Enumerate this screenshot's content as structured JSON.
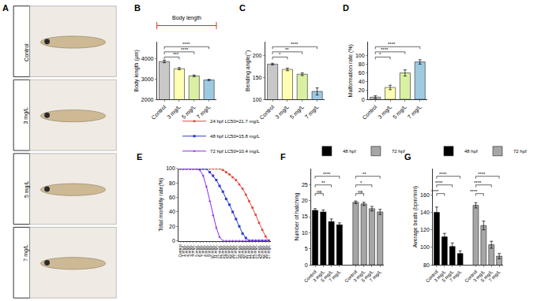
{
  "panel_A": {
    "label": "A",
    "groups": [
      "Control",
      "3 mg/L",
      "5 mg/L",
      "7 mg/L"
    ]
  },
  "chart_data": [
    {
      "label": "B",
      "type": "bar",
      "subtitle": "Body length",
      "categories": [
        "Control",
        "3 mg/L",
        "5 mg/L",
        "7 mg/L"
      ],
      "values": [
        3850,
        3500,
        3150,
        2950
      ],
      "errors": [
        60,
        50,
        40,
        30
      ],
      "colors": [
        "#c8c8c8",
        "#ffffb3",
        "#d9f0a3",
        "#9ecae1"
      ],
      "ylabel": "Body length (μm)",
      "ylim": [
        2000,
        4800
      ],
      "yticks": [
        2000,
        3000,
        4000
      ],
      "grid": false,
      "annotations": [
        {
          "from": "Control",
          "to": "3 mg/L",
          "text": "***"
        },
        {
          "from": "Control",
          "to": "5 mg/L",
          "text": "****"
        },
        {
          "from": "Control",
          "to": "7 mg/L",
          "text": "****"
        }
      ]
    },
    {
      "label": "C",
      "type": "bar",
      "categories": [
        "Control",
        "3 mg/L",
        "5 mg/L",
        "7 mg/L"
      ],
      "values": [
        180,
        168,
        157,
        118
      ],
      "errors": [
        2,
        3,
        3,
        8
      ],
      "colors": [
        "#c8c8c8",
        "#ffffb3",
        "#d9f0a3",
        "#9ecae1"
      ],
      "ylabel": "Bending angle(°)",
      "ylim": [
        100,
        230
      ],
      "yticks": [
        100,
        150,
        200
      ],
      "grid": false,
      "annotations": [
        {
          "from": "Control",
          "to": "3 mg/L",
          "text": "*"
        },
        {
          "from": "Control",
          "to": "5 mg/L",
          "text": "**"
        },
        {
          "from": "Control",
          "to": "7 mg/L",
          "text": "****"
        }
      ]
    },
    {
      "label": "D",
      "type": "bar",
      "categories": [
        "Control",
        "3 mg/L",
        "5 mg/L",
        "7 mg/L"
      ],
      "values": [
        5,
        27,
        60,
        85
      ],
      "errors": [
        3,
        5,
        7,
        5
      ],
      "colors": [
        "#c8c8c8",
        "#ffffb3",
        "#d9f0a3",
        "#9ecae1"
      ],
      "ylabel": "Malformation rate (%)",
      "ylim": [
        0,
        130
      ],
      "yticks": [
        0,
        20,
        40,
        60,
        80,
        100
      ],
      "grid": false,
      "annotations": [
        {
          "from": "Control",
          "to": "3 mg/L",
          "text": "*"
        },
        {
          "from": "Control",
          "to": "5 mg/L",
          "text": "****"
        },
        {
          "from": "Control",
          "to": "7 mg/L",
          "text": "****"
        }
      ]
    },
    {
      "label": "E",
      "type": "line",
      "categories": [
        "Control",
        "1 mg/L",
        "2 mg/L",
        "3 mg/L",
        "4 mg/L",
        "5 mg/L",
        "6 mg/L",
        "7 mg/L",
        "8 mg/L",
        "9 mg/L",
        "10 mg/L",
        "11 mg/L",
        "12 mg/L",
        "13 mg/L",
        "14 mg/L",
        "15 mg/L",
        "16 mg/L",
        "17 mg/L",
        "18 mg/L",
        "19 mg/L",
        "20 mg/L",
        "21 mg/L",
        "22 mg/L",
        "23 mg/L",
        "24 mg/L",
        "25 mg/L",
        "26 mg/L",
        "27 mg/L"
      ],
      "series": [
        {
          "name": "24 hpf LC50=21.7 mg/L",
          "color": "#e8443a",
          "marker": "circle",
          "values": [
            100,
            100,
            100,
            100,
            100,
            100,
            100,
            100,
            100,
            100,
            100,
            100,
            100,
            98,
            95,
            92,
            88,
            84,
            78,
            72,
            64,
            55,
            46,
            36,
            25,
            15,
            6,
            0
          ]
        },
        {
          "name": "48 hpf LC50=15.8 mg/L",
          "color": "#2b3bd1",
          "marker": "square",
          "values": [
            100,
            100,
            100,
            100,
            100,
            100,
            100,
            100,
            100,
            95,
            90,
            84,
            76,
            68,
            58,
            50,
            40,
            30,
            20,
            10,
            4,
            0,
            0,
            0,
            0,
            0,
            0,
            0
          ]
        },
        {
          "name": "72 hpf LC50=10.4 mg/L",
          "color": "#8a2be2",
          "marker": "triangle-up",
          "values": [
            100,
            100,
            100,
            100,
            100,
            100,
            98,
            90,
            75,
            55,
            35,
            18,
            5,
            0,
            0,
            0,
            0,
            0,
            0,
            0,
            0,
            0,
            0,
            0,
            0,
            0,
            0,
            0
          ]
        }
      ],
      "ylabel": "Total mortality rate(%)",
      "ylim": [
        0,
        100
      ],
      "yticks": [
        0,
        20,
        40,
        60,
        80,
        100
      ],
      "grid": false,
      "legend": "top"
    },
    {
      "label": "F",
      "type": "bar",
      "categories": [
        "Control",
        "3 mg/L",
        "5 mg/L",
        "7 mg/L",
        null,
        "Control",
        "3 mg/L",
        "5 mg/L",
        "7 mg/L"
      ],
      "series": [
        {
          "name": "48 hpf",
          "color": "#000000",
          "values": [
            17,
            16.5,
            13.5,
            12.5,
            null,
            null,
            null,
            null,
            null
          ],
          "errors": [
            0.5,
            0.6,
            0.8,
            0.6,
            null,
            null,
            null,
            null,
            null
          ]
        },
        {
          "name": "72 hpf",
          "color": "#a6a6a6",
          "values": [
            null,
            null,
            null,
            null,
            null,
            19.5,
            19,
            17.5,
            16.5
          ],
          "errors": [
            null,
            null,
            null,
            null,
            null,
            0.4,
            0.5,
            0.7,
            0.8
          ]
        }
      ],
      "ylabel": "Number of hatching",
      "ylim": [
        0,
        30
      ],
      "yticks": [
        0,
        5,
        10,
        15,
        20,
        25
      ],
      "grid": false,
      "legend": "top",
      "annotations": [
        {
          "series": "48 hpf",
          "from": "Control",
          "to": "3 mg/L",
          "text": "ns"
        },
        {
          "series": "48 hpf",
          "from": "Control",
          "to": "5 mg/L",
          "text": "**"
        },
        {
          "series": "48 hpf",
          "from": "Control",
          "to": "7 mg/L",
          "text": "****"
        },
        {
          "series": "72 hpf",
          "from": "Control",
          "to": "3 mg/L",
          "text": "ns"
        },
        {
          "series": "72 hpf",
          "from": "Control",
          "to": "5 mg/L",
          "text": "*"
        },
        {
          "series": "72 hpf",
          "from": "Control",
          "to": "7 mg/L",
          "text": "**"
        }
      ]
    },
    {
      "label": "G",
      "type": "bar",
      "categories": [
        "Control",
        "3 mg/L",
        "5 mg/L",
        "7 mg/L",
        null,
        "Control",
        "3 mg/L",
        "5 mg/L",
        "7 mg/L"
      ],
      "series": [
        {
          "name": "48 hpf",
          "color": "#000000",
          "values": [
            140,
            112,
            101,
            93,
            null,
            null,
            null,
            null,
            null
          ],
          "errors": [
            6,
            4,
            4,
            3,
            null,
            null,
            null,
            null,
            null
          ]
        },
        {
          "name": "72 hpf",
          "color": "#a6a6a6",
          "values": [
            null,
            null,
            null,
            null,
            null,
            148,
            125,
            103,
            90
          ],
          "errors": [
            null,
            null,
            null,
            null,
            null,
            3,
            5,
            4,
            3
          ]
        }
      ],
      "ylabel": "Average beats (bpm/min)",
      "ylim": [
        80,
        190
      ],
      "yticks": [
        80,
        100,
        120,
        140,
        160
      ],
      "grid": false,
      "legend": "top",
      "annotations": [
        {
          "series": "48 hpf",
          "from": "Control",
          "to": "3 mg/L",
          "text": "****"
        },
        {
          "series": "48 hpf",
          "from": "Control",
          "to": "5 mg/L",
          "text": "****"
        },
        {
          "series": "48 hpf",
          "from": "Control",
          "to": "7 mg/L",
          "text": "****"
        },
        {
          "series": "72 hpf",
          "from": "Control",
          "to": "3 mg/L",
          "text": "****"
        },
        {
          "series": "72 hpf",
          "from": "Control",
          "to": "5 mg/L",
          "text": "****"
        },
        {
          "series": "72 hpf",
          "from": "Control",
          "to": "7 mg/L",
          "text": "****"
        }
      ]
    }
  ]
}
